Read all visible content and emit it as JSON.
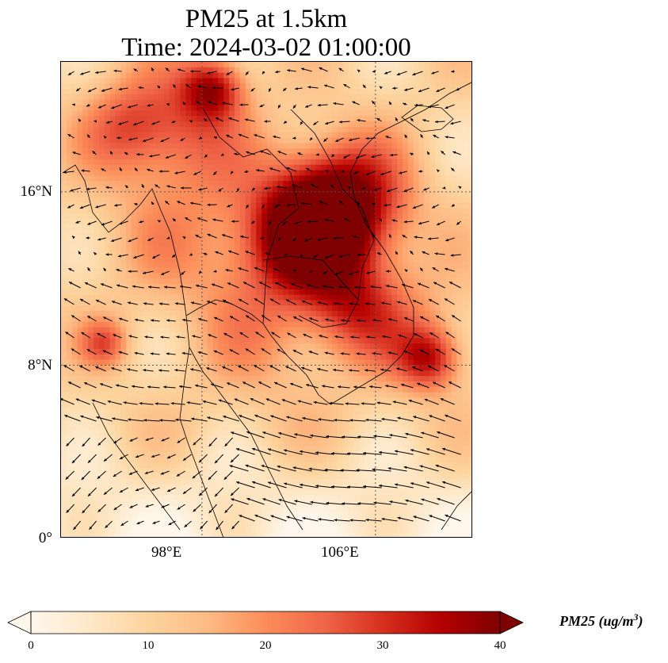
{
  "title": {
    "line1": "PM25 at 1.5km",
    "line2": "Time: 2024-03-02 01:00:00"
  },
  "map": {
    "variable": "PM25",
    "level": "1.5km",
    "extent": {
      "lon_min": 91.5,
      "lon_max": 110.5,
      "lat_min": 0,
      "lat_max": 22
    },
    "gridlines": "dotted",
    "lat_ticks": [
      "16°N",
      "8°N",
      "0°"
    ],
    "lon_ticks": [
      "98°E",
      "106°E"
    ],
    "features": [
      "coastlines",
      "country-borders",
      "wind-vectors"
    ],
    "hotspots": [
      {
        "lon": 104.5,
        "lat": 15.4,
        "value": 40,
        "radius_deg": 2.0
      },
      {
        "lon": 103.0,
        "lat": 14.2,
        "value": 30,
        "radius_deg": 1.5
      },
      {
        "lon": 102.0,
        "lat": 13.5,
        "value": 26,
        "radius_deg": 2.5
      },
      {
        "lon": 98.5,
        "lat": 20.8,
        "value": 32,
        "radius_deg": 1.0
      },
      {
        "lon": 97.0,
        "lat": 19.0,
        "value": 24,
        "radius_deg": 2.0
      },
      {
        "lon": 94.5,
        "lat": 19.0,
        "value": 22,
        "radius_deg": 1.5
      },
      {
        "lon": 105.0,
        "lat": 10.8,
        "value": 24,
        "radius_deg": 1.5
      },
      {
        "lon": 108.5,
        "lat": 8.3,
        "value": 30,
        "radius_deg": 1.0
      },
      {
        "lon": 93.5,
        "lat": 9.0,
        "value": 25,
        "radius_deg": 0.8
      },
      {
        "lon": 101.0,
        "lat": 9.0,
        "value": 16,
        "radius_deg": 2.5
      },
      {
        "lon": 107.5,
        "lat": 9.5,
        "value": 18,
        "radius_deg": 2.0
      },
      {
        "lon": 96.5,
        "lat": 14.0,
        "value": 16,
        "radius_deg": 2.5
      }
    ]
  },
  "colorbar": {
    "cmap": "OrRd",
    "min": 0,
    "max": 40,
    "ticks": [
      "0",
      "10",
      "20",
      "30",
      "40"
    ],
    "extend": "both",
    "label": "PM25 (ug/m",
    "label_sup": "3",
    "label_close": ")",
    "colors": [
      "#fff7ec",
      "#fee8c8",
      "#fdd49e",
      "#fdbb84",
      "#fc8d59",
      "#ef6548",
      "#d7301f",
      "#b30000",
      "#7f0000"
    ]
  }
}
